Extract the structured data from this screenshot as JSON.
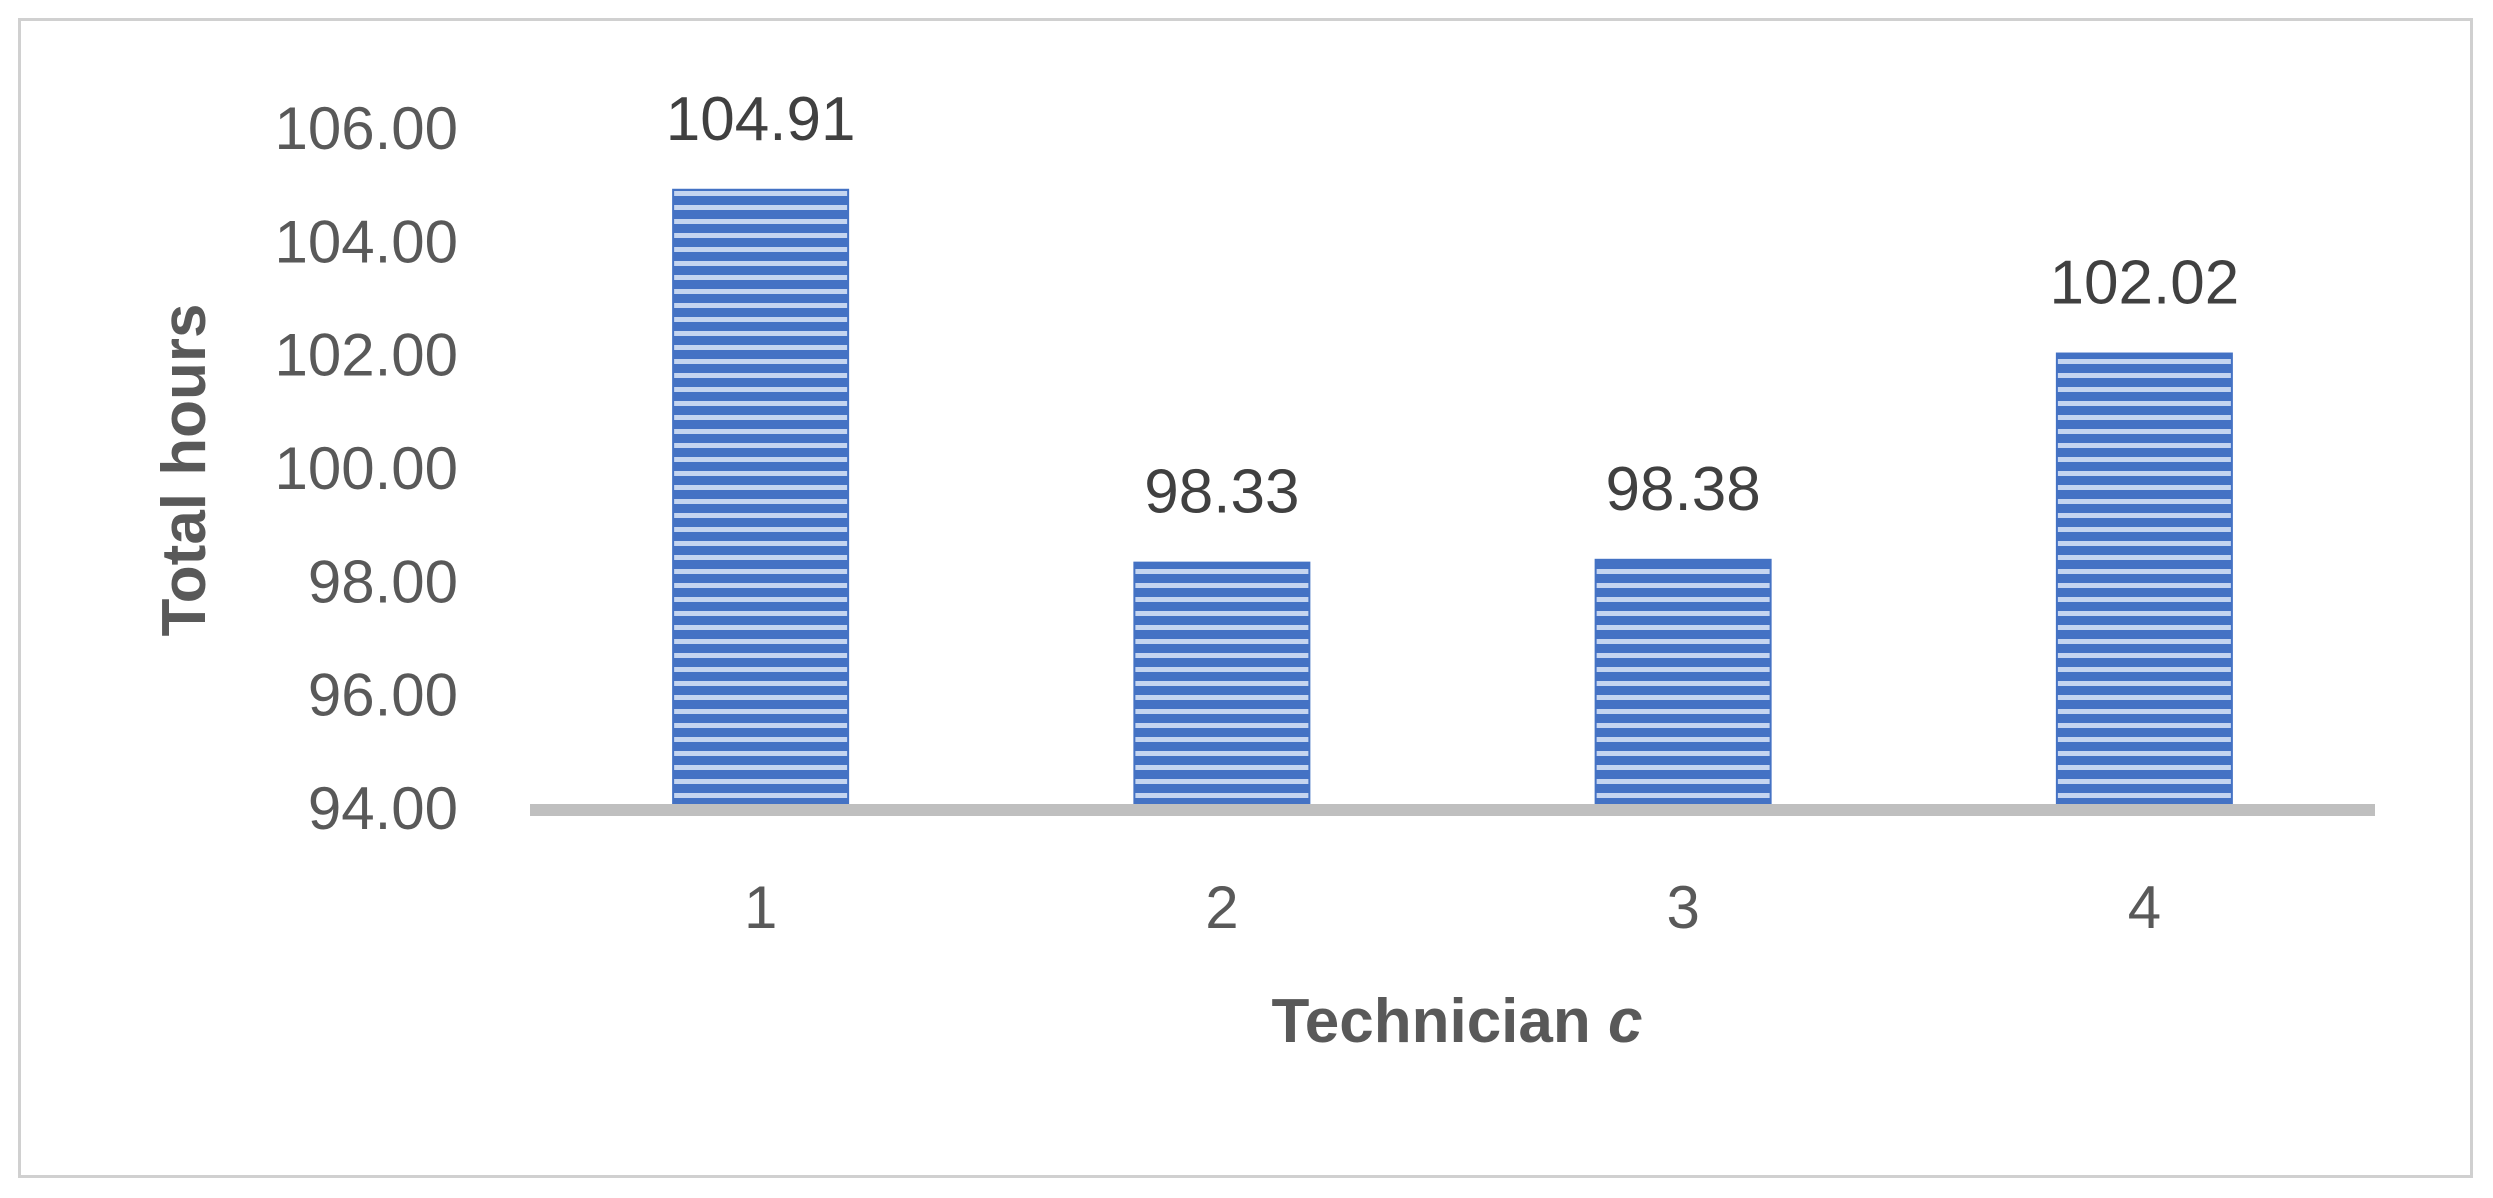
{
  "chart_data": {
    "type": "bar",
    "categories": [
      "1",
      "2",
      "3",
      "4"
    ],
    "values": [
      104.91,
      98.33,
      98.38,
      102.02
    ],
    "data_labels": [
      "104.91",
      "98.33",
      "98.38",
      "102.02"
    ],
    "title": "",
    "xlabel_main": "Technician ",
    "xlabel_var": "c",
    "ylabel": "Total hours",
    "ylim": [
      94,
      106
    ],
    "yticks": [
      94,
      96,
      98,
      100,
      102,
      104,
      106
    ],
    "ytick_labels": [
      "94.00",
      "96.00",
      "98.00",
      "100.00",
      "102.00",
      "104.00",
      "106.00"
    ],
    "grid": false,
    "legend": "none",
    "colors": {
      "bar_fill": "#4472c4",
      "bar_stripe": "#c5d5f0",
      "axis_line": "#bfbfbf",
      "text": "#595959",
      "data_label": "#404040",
      "frame": "#d0d0d0"
    }
  }
}
